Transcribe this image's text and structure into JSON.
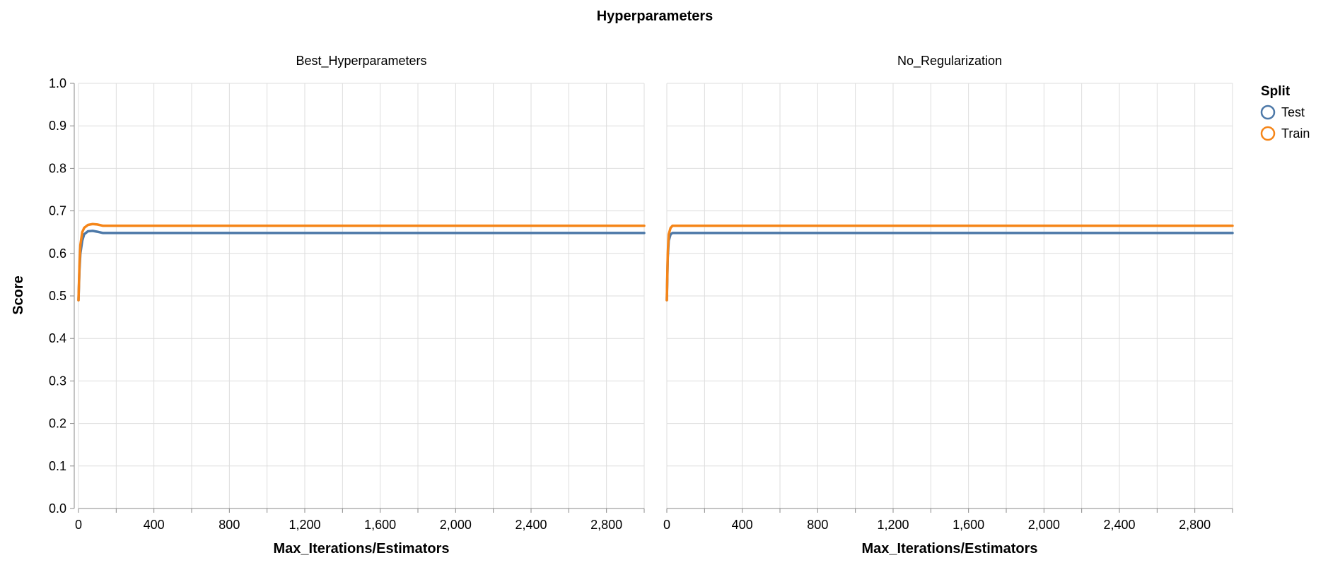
{
  "chart_data": {
    "type": "line",
    "title": "Hyperparameters",
    "xlabel": "Max_Iterations/Estimators",
    "ylabel": "Score",
    "xlim": [
      0,
      3000
    ],
    "ylim": [
      0,
      1
    ],
    "x_ticks": [
      0,
      400,
      800,
      1200,
      1600,
      2000,
      2400,
      2800
    ],
    "x_tick_labels": [
      "0",
      "400",
      "800",
      "1,200",
      "1,600",
      "2,000",
      "2,400",
      "2,800"
    ],
    "y_ticks": [
      0,
      0.1,
      0.2,
      0.3,
      0.4,
      0.5,
      0.6,
      0.7,
      0.8,
      0.9,
      1.0
    ],
    "y_tick_labels": [
      "0.0",
      "0.1",
      "0.2",
      "0.3",
      "0.4",
      "0.5",
      "0.6",
      "0.7",
      "0.8",
      "0.9",
      "1.0"
    ],
    "grid": true,
    "legend": {
      "title": "Split",
      "position": "right",
      "items": [
        {
          "label": "Test",
          "color": "#4c78a8"
        },
        {
          "label": "Train",
          "color": "#f58518"
        }
      ]
    },
    "panels": [
      {
        "title": "Best_Hyperparameters",
        "series": [
          {
            "name": "Test",
            "color": "#4c78a8",
            "points": [
              [
                0,
                0.49
              ],
              [
                5,
                0.56
              ],
              [
                10,
                0.6
              ],
              [
                20,
                0.63
              ],
              [
                30,
                0.645
              ],
              [
                50,
                0.652
              ],
              [
                75,
                0.653
              ],
              [
                100,
                0.651
              ],
              [
                130,
                0.648
              ],
              [
                200,
                0.648
              ],
              [
                1000,
                0.648
              ],
              [
                2000,
                0.648
              ],
              [
                3000,
                0.648
              ]
            ]
          },
          {
            "name": "Train",
            "color": "#f58518",
            "points": [
              [
                0,
                0.49
              ],
              [
                5,
                0.57
              ],
              [
                10,
                0.62
              ],
              [
                20,
                0.65
              ],
              [
                30,
                0.66
              ],
              [
                50,
                0.667
              ],
              [
                75,
                0.669
              ],
              [
                100,
                0.668
              ],
              [
                130,
                0.665
              ],
              [
                200,
                0.665
              ],
              [
                1000,
                0.665
              ],
              [
                2000,
                0.665
              ],
              [
                3000,
                0.665
              ]
            ]
          }
        ]
      },
      {
        "title": "No_Regularization",
        "series": [
          {
            "name": "Test",
            "color": "#4c78a8",
            "points": [
              [
                0,
                0.49
              ],
              [
                5,
                0.59
              ],
              [
                10,
                0.63
              ],
              [
                20,
                0.645
              ],
              [
                30,
                0.648
              ],
              [
                100,
                0.648
              ],
              [
                1000,
                0.648
              ],
              [
                2000,
                0.648
              ],
              [
                3000,
                0.648
              ]
            ]
          },
          {
            "name": "Train",
            "color": "#f58518",
            "points": [
              [
                0,
                0.49
              ],
              [
                5,
                0.6
              ],
              [
                10,
                0.645
              ],
              [
                20,
                0.66
              ],
              [
                30,
                0.665
              ],
              [
                100,
                0.665
              ],
              [
                1000,
                0.665
              ],
              [
                2000,
                0.665
              ],
              [
                3000,
                0.665
              ]
            ]
          }
        ]
      }
    ]
  }
}
